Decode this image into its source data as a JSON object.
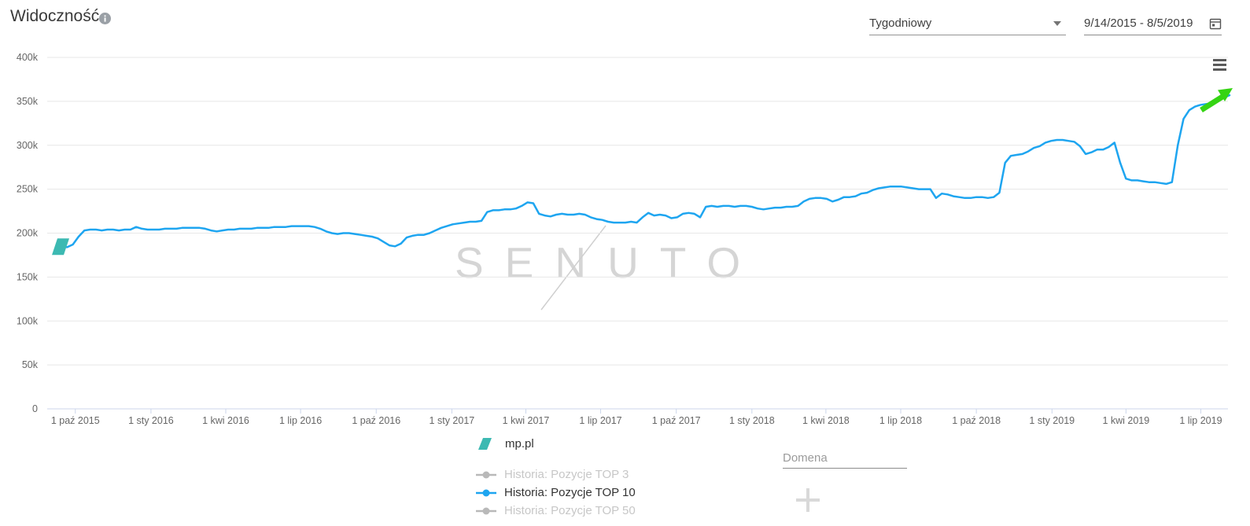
{
  "header": {
    "title": "Widoczność",
    "interval_select": {
      "value": "Tygodniowy"
    },
    "date_range": {
      "value": "9/14/2015 - 8/5/2019"
    }
  },
  "watermark": "SENUTO",
  "legend": {
    "domain": {
      "label": "mp.pl",
      "marker_color": "#3cb9b2"
    },
    "series": [
      {
        "label": "Historia: Pozycje TOP 3",
        "active": false,
        "color": "#b9b9b9"
      },
      {
        "label": "Historia: Pozycje TOP 10",
        "active": true,
        "color": "#1ea5f0"
      },
      {
        "label": "Historia: Pozycje TOP 50",
        "active": false,
        "color": "#b9b9b9"
      }
    ]
  },
  "add_domain": {
    "placeholder": "Domena"
  },
  "chart_data": {
    "type": "line",
    "series_name": "Historia: Pozycje TOP 10",
    "domain": "mp.pl",
    "interval": "weekly",
    "start_date": "2015-09-14",
    "end_date": "2019-08-05",
    "total_days": 1421,
    "unit": "visibility (thousands)",
    "line_color": "#1ea5f0",
    "start_marker_color": "#3cb9b2",
    "annotation_arrow_color": "#35d413",
    "grid": true,
    "legend_position": "bottom",
    "ylim_k": [
      0,
      400
    ],
    "y_ticks": [
      {
        "label": "0",
        "value": 0
      },
      {
        "label": "50k",
        "value": 50
      },
      {
        "label": "100k",
        "value": 100
      },
      {
        "label": "150k",
        "value": 150
      },
      {
        "label": "200k",
        "value": 200
      },
      {
        "label": "250k",
        "value": 250
      },
      {
        "label": "300k",
        "value": 300
      },
      {
        "label": "350k",
        "value": 350
      },
      {
        "label": "400k",
        "value": 400
      }
    ],
    "x_ticks": [
      {
        "label": "1 paź 2015",
        "day": 17
      },
      {
        "label": "1 sty 2016",
        "day": 109
      },
      {
        "label": "1 kwi 2016",
        "day": 200
      },
      {
        "label": "1 lip 2016",
        "day": 291
      },
      {
        "label": "1 paź 2016",
        "day": 383
      },
      {
        "label": "1 sty 2017",
        "day": 475
      },
      {
        "label": "1 kwi 2017",
        "day": 565
      },
      {
        "label": "1 lip 2017",
        "day": 656
      },
      {
        "label": "1 paź 2017",
        "day": 748
      },
      {
        "label": "1 sty 2018",
        "day": 840
      },
      {
        "label": "1 kwi 2018",
        "day": 930
      },
      {
        "label": "1 lip 2018",
        "day": 1021
      },
      {
        "label": "1 paź 2018",
        "day": 1113
      },
      {
        "label": "1 sty 2019",
        "day": 1205
      },
      {
        "label": "1 kwi 2019",
        "day": 1295
      },
      {
        "label": "1 lip 2019",
        "day": 1386
      }
    ],
    "values_k": [
      185,
      184,
      187,
      196,
      203,
      204,
      204,
      203,
      204,
      204,
      203,
      204,
      204,
      207,
      205,
      204,
      204,
      204,
      205,
      205,
      205,
      206,
      206,
      206,
      206,
      205,
      203,
      202,
      203,
      204,
      204,
      205,
      205,
      205,
      206,
      206,
      206,
      207,
      207,
      207,
      208,
      208,
      208,
      208,
      207,
      205,
      202,
      200,
      199,
      200,
      200,
      199,
      198,
      197,
      196,
      194,
      190,
      186,
      185,
      188,
      195,
      197,
      198,
      198,
      200,
      203,
      206,
      208,
      210,
      211,
      212,
      213,
      213,
      214,
      224,
      226,
      226,
      227,
      227,
      228,
      231,
      235,
      234,
      222,
      220,
      219,
      221,
      222,
      221,
      221,
      222,
      221,
      218,
      216,
      215,
      213,
      212,
      212,
      212,
      213,
      212,
      218,
      223,
      220,
      221,
      220,
      217,
      218,
      222,
      223,
      222,
      218,
      230,
      231,
      230,
      231,
      231,
      230,
      231,
      231,
      230,
      228,
      227,
      228,
      229,
      229,
      230,
      230,
      231,
      236,
      239,
      240,
      240,
      239,
      236,
      238,
      241,
      241,
      242,
      245,
      246,
      249,
      251,
      252,
      253,
      253,
      253,
      252,
      251,
      250,
      250,
      250,
      240,
      245,
      244,
      242,
      241,
      240,
      240,
      241,
      241,
      240,
      241,
      246,
      280,
      288,
      289,
      290,
      293,
      297,
      299,
      303,
      305,
      306,
      306,
      305,
      304,
      299,
      290,
      292,
      295,
      295,
      298,
      303,
      280,
      262,
      260,
      260,
      259,
      258,
      258,
      257,
      256,
      258,
      300,
      330,
      340,
      344,
      346,
      347,
      348,
      350,
      354,
      357
    ]
  }
}
